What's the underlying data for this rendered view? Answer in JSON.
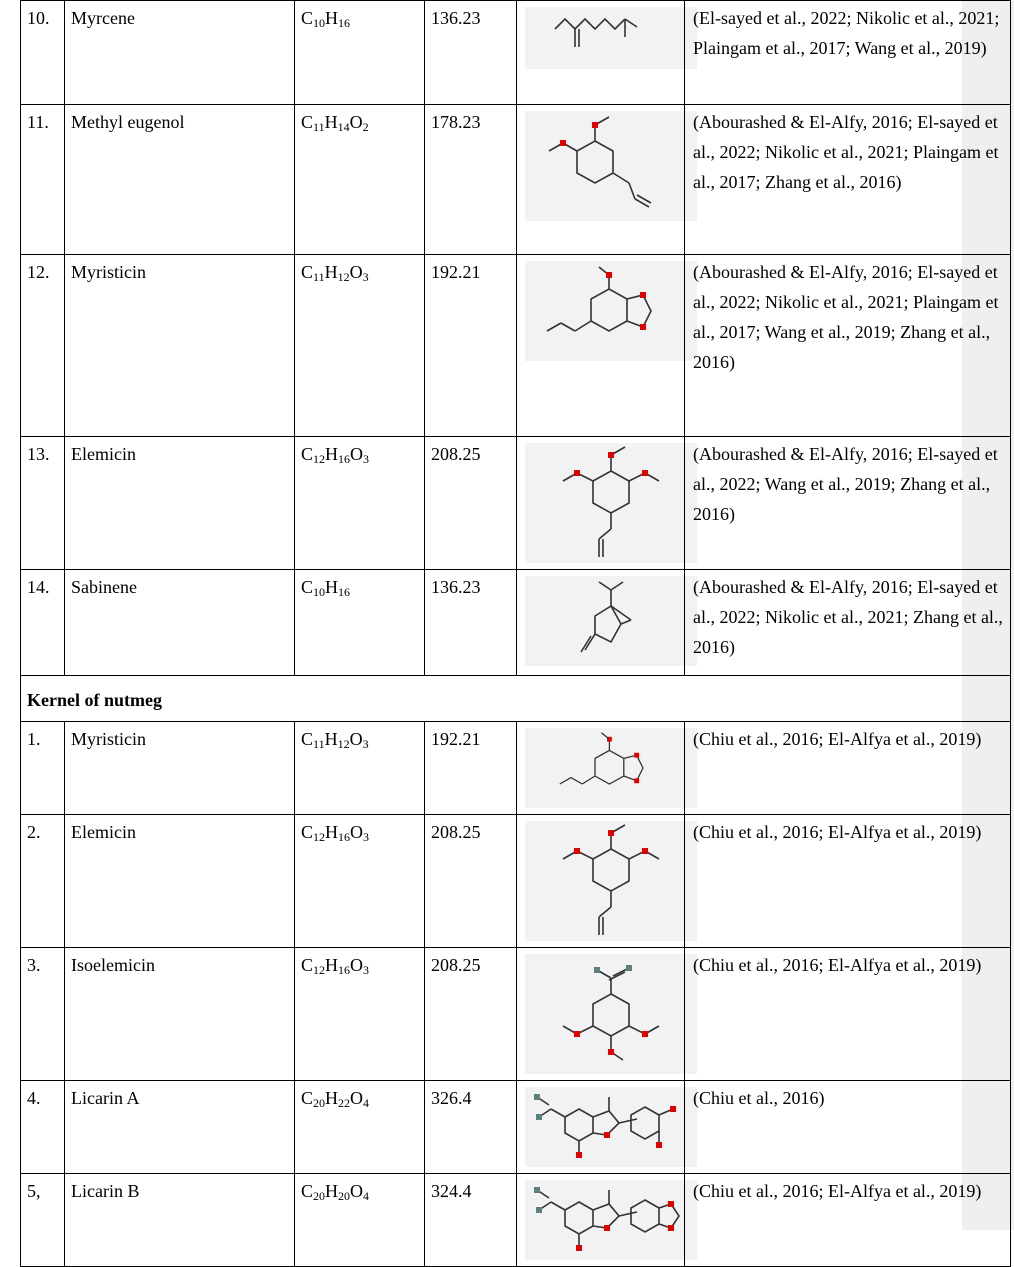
{
  "sections": [
    {
      "title": "",
      "rows": [
        {
          "no": "10.",
          "name": "Myrcene",
          "formula": [
            {
              "t": "C",
              "s": "10"
            },
            {
              "t": "H",
              "s": "16"
            }
          ],
          "mw": "136.23",
          "structure": "myrcene-structure",
          "ref": "(El-sayed et al., 2022; Nikolic et al., 2021; Plaingam et al., 2017; Wang et al., 2019)"
        },
        {
          "no": "11.",
          "name": "Methyl eugenol",
          "formula": [
            {
              "t": "C",
              "s": "11"
            },
            {
              "t": "H",
              "s": "14"
            },
            {
              "t": "O",
              "s": "2"
            }
          ],
          "mw": "178.23",
          "structure": "methyl-eugenol-structure",
          "ref": "(Abourashed & El-Alfy, 2016; El-sayed et al., 2022; Nikolic et al., 2021; Plaingam et al., 2017; Zhang et al., 2016)"
        },
        {
          "no": "12.",
          "name": "Myristicin",
          "formula": [
            {
              "t": "C",
              "s": "11"
            },
            {
              "t": "H",
              "s": "12"
            },
            {
              "t": "O",
              "s": "3"
            }
          ],
          "mw": "192.21",
          "structure": "myristicin-structure",
          "ref": "(Abourashed & El-Alfy, 2016; El-sayed et al., 2022; Nikolic et al., 2021; Plaingam et al., 2017; Wang et al., 2019; Zhang et al., 2016)"
        },
        {
          "no": "13.",
          "name": "Elemicin",
          "formula": [
            {
              "t": "C",
              "s": "12"
            },
            {
              "t": "H",
              "s": "16"
            },
            {
              "t": "O",
              "s": "3"
            }
          ],
          "mw": "208.25",
          "structure": "elemicin-structure",
          "ref": "(Abourashed & El-Alfy, 2016; El-sayed et al., 2022; Wang et al., 2019; Zhang et al., 2016)"
        },
        {
          "no": "14.",
          "name": "Sabinene",
          "formula": [
            {
              "t": "C",
              "s": "10"
            },
            {
              "t": "H",
              "s": "16"
            }
          ],
          "mw": "136.23",
          "structure": "sabinene-structure",
          "ref": "(Abourashed & El-Alfy, 2016; El-sayed et al., 2022; Nikolic et al., 2021; Zhang et al., 2016)"
        }
      ]
    },
    {
      "title": "Kernel of nutmeg",
      "rows": [
        {
          "no": "1.",
          "name": "Myristicin",
          "formula": [
            {
              "t": "C",
              "s": "11"
            },
            {
              "t": "H",
              "s": "12"
            },
            {
              "t": "O",
              "s": "3"
            }
          ],
          "mw": "192.21",
          "structure": "myristicin-structure",
          "ref": "(Chiu et al., 2016; El-Alfya et al., 2019)"
        },
        {
          "no": "2.",
          "name": "Elemicin",
          "formula": [
            {
              "t": "C",
              "s": "12"
            },
            {
              "t": "H",
              "s": "16"
            },
            {
              "t": "O",
              "s": "3"
            }
          ],
          "mw": "208.25",
          "structure": "elemicin-structure",
          "ref": "(Chiu et al., 2016; El-Alfya et al., 2019)"
        },
        {
          "no": "3.",
          "name": "Isoelemicin",
          "formula": [
            {
              "t": "C",
              "s": "12"
            },
            {
              "t": "H",
              "s": "16"
            },
            {
              "t": "O",
              "s": "3"
            }
          ],
          "mw": "208.25",
          "structure": "isoelemicin-structure",
          "ref": "(Chiu et al., 2016; El-Alfya et al., 2019)"
        },
        {
          "no": "4.",
          "name": "Licarin A",
          "formula": [
            {
              "t": "C",
              "s": "20"
            },
            {
              "t": "H",
              "s": "22"
            },
            {
              "t": "O",
              "s": "4"
            }
          ],
          "mw": "326.4",
          "structure": "licarin-a-structure",
          "ref": "(Chiu et al., 2016)"
        },
        {
          "no": "5,",
          "name": "Licarin B",
          "formula": [
            {
              "t": "C",
              "s": "20"
            },
            {
              "t": "H",
              "s": "20"
            },
            {
              "t": "O",
              "s": "4"
            }
          ],
          "mw": "324.4",
          "structure": "licarin-b-structure",
          "ref": "(Chiu et al., 2016; El-Alfya et al., 2019)"
        }
      ]
    }
  ]
}
